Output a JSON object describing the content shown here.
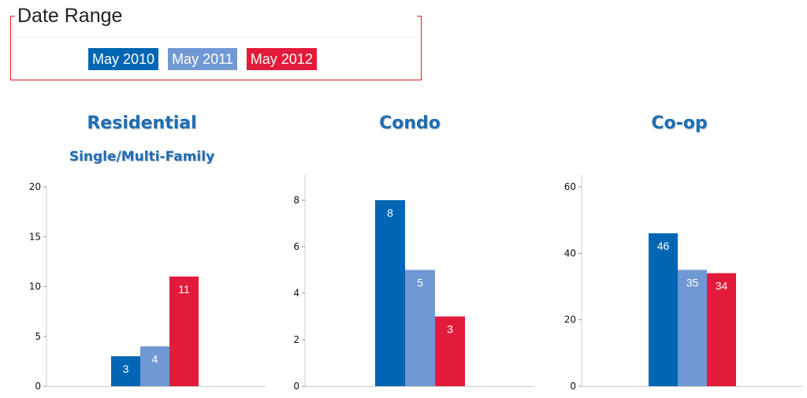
{
  "date_range": {
    "title": "Date Range",
    "buttons": [
      {
        "label": "May 2010",
        "color": "#0066b3"
      },
      {
        "label": "May 2011",
        "color": "#7098d4"
      },
      {
        "label": "May 2012",
        "color": "#e31b3a"
      }
    ]
  },
  "chart_data": [
    {
      "type": "bar",
      "title": "Residential",
      "subtitle": "Single/Multi-Family",
      "series": [
        {
          "name": "May 2010",
          "values": [
            3
          ]
        },
        {
          "name": "May 2011",
          "values": [
            4
          ]
        },
        {
          "name": "May 2012",
          "values": [
            11
          ]
        }
      ],
      "ylim": [
        0,
        20
      ],
      "yticks": [
        0,
        5,
        10,
        15,
        20
      ],
      "data_labels": true
    },
    {
      "type": "bar",
      "title": "Condo",
      "subtitle": "",
      "series": [
        {
          "name": "May 2010",
          "values": [
            8
          ]
        },
        {
          "name": "May 2011",
          "values": [
            5
          ]
        },
        {
          "name": "May 2012",
          "values": [
            3
          ]
        }
      ],
      "ylim": [
        0,
        9
      ],
      "yticks": [
        0,
        2,
        4,
        6,
        8
      ],
      "data_labels": true
    },
    {
      "type": "bar",
      "title": "Co-op",
      "subtitle": "",
      "series": [
        {
          "name": "May 2010",
          "values": [
            46
          ]
        },
        {
          "name": "May 2011",
          "values": [
            35
          ]
        },
        {
          "name": "May 2012",
          "values": [
            34
          ]
        }
      ],
      "ylim": [
        0,
        60
      ],
      "yticks": [
        0,
        20,
        40,
        60
      ],
      "data_labels": true
    }
  ]
}
